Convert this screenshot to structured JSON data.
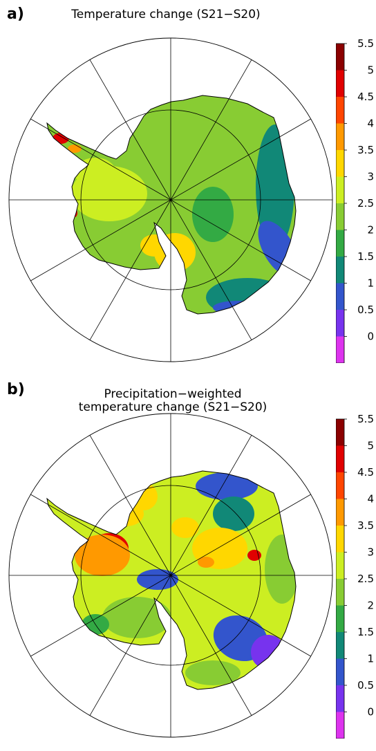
{
  "panels": [
    {
      "label": "a)",
      "title_lines": [
        "Temperature change (S21−S20)"
      ],
      "map_subject": "Antarctica polar stereographic temperature change field",
      "dominant_range": [
        2.0,
        3.0
      ]
    },
    {
      "label": "b)",
      "title_lines": [
        "Precipitation−weighted",
        "temperature change (S21−S20)"
      ],
      "map_subject": "Antarctica polar stereographic precipitation-weighted temperature change field",
      "dominant_range": [
        2.5,
        3.5
      ]
    }
  ],
  "colorbar": {
    "ticks": [
      "5.5",
      "5",
      "4.5",
      "4",
      "3.5",
      "3",
      "2.5",
      "2",
      "1.5",
      "1",
      "0.5",
      "0"
    ],
    "colors": [
      "#8b0000",
      "#e00000",
      "#ff4500",
      "#ff9900",
      "#ffd700",
      "#ccee22",
      "#88cc33",
      "#33aa44",
      "#118877",
      "#3355cc",
      "#7733ee",
      "#dd33ee"
    ]
  },
  "map_colors": {
    "very_warm": "#e00000",
    "warm": "#ff9900",
    "yellow": "#ffd700",
    "yellow_green": "#ccee22",
    "green": "#88cc33",
    "dark_green": "#33aa44",
    "teal": "#118877",
    "blue": "#3355cc",
    "violet": "#7733ee"
  }
}
